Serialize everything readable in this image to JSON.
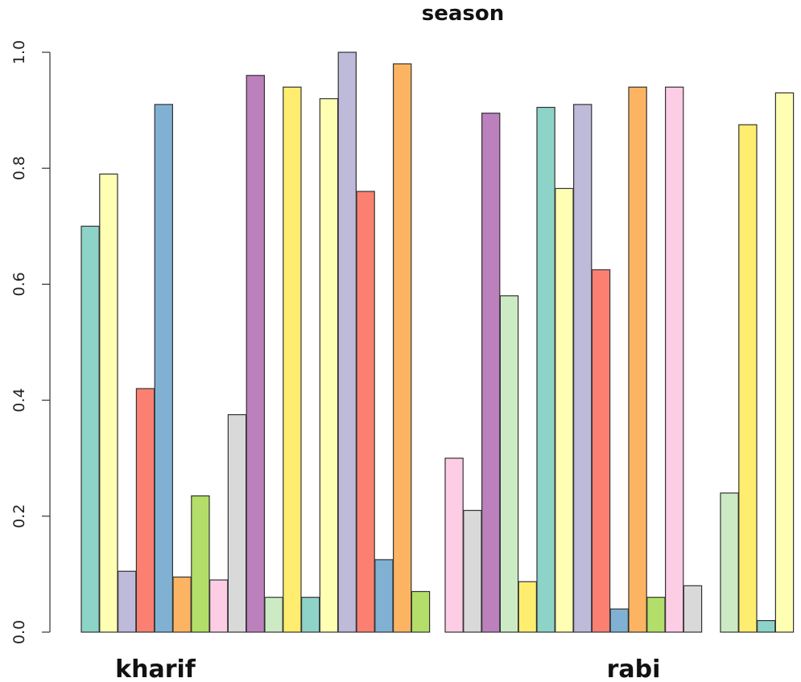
{
  "chart_data": {
    "type": "bar",
    "title": "season",
    "xlabel": "",
    "ylabel": "",
    "ylim": [
      0,
      1.0
    ],
    "yticks": [
      "0.0",
      "0.2",
      "0.4",
      "0.6",
      "0.8",
      "1.0"
    ],
    "grid": false,
    "legend": "none",
    "groups": [
      {
        "label": "kharif",
        "bars": [
          {
            "value": 0.7,
            "color": "#8DD3C7"
          },
          {
            "value": 0.79,
            "color": "#FFFFB3"
          },
          {
            "value": 0.105,
            "color": "#BEBADA"
          },
          {
            "value": 0.42,
            "color": "#FB8072"
          },
          {
            "value": 0.91,
            "color": "#80B1D3"
          },
          {
            "value": 0.095,
            "color": "#FDB462"
          },
          {
            "value": 0.235,
            "color": "#B3DE69"
          },
          {
            "value": 0.09,
            "color": "#FCCDE5"
          },
          {
            "value": 0.375,
            "color": "#D9D9D9"
          },
          {
            "value": 0.96,
            "color": "#BC80BD"
          },
          {
            "value": 0.06,
            "color": "#CCEBC5"
          },
          {
            "value": 0.94,
            "color": "#FFED6F"
          },
          {
            "value": 0.06,
            "color": "#8DD3C7"
          },
          {
            "value": 0.92,
            "color": "#FFFFB3"
          },
          {
            "value": 1.0,
            "color": "#BEBADA"
          },
          {
            "value": 0.76,
            "color": "#FB8072"
          },
          {
            "value": 0.125,
            "color": "#80B1D3"
          },
          {
            "value": 0.98,
            "color": "#FDB462"
          },
          {
            "value": 0.07,
            "color": "#B3DE69"
          }
        ]
      },
      {
        "label": "rabi",
        "bars": [
          {
            "value": 0.3,
            "color": "#FCCDE5"
          },
          {
            "value": 0.21,
            "color": "#D9D9D9"
          },
          {
            "value": 0.895,
            "color": "#BC80BD"
          },
          {
            "value": 0.58,
            "color": "#CCEBC5"
          },
          {
            "value": 0.087,
            "color": "#FFED6F"
          },
          {
            "value": 0.905,
            "color": "#8DD3C7"
          },
          {
            "value": 0.765,
            "color": "#FFFFB3"
          },
          {
            "value": 0.91,
            "color": "#BEBADA"
          },
          {
            "value": 0.625,
            "color": "#FB8072"
          },
          {
            "value": 0.04,
            "color": "#80B1D3"
          },
          {
            "value": 0.94,
            "color": "#FDB462"
          },
          {
            "value": 0.06,
            "color": "#B3DE69"
          },
          {
            "value": 0.94,
            "color": "#FCCDE5"
          },
          {
            "value": 0.08,
            "color": "#D9D9D9"
          },
          {
            "value": 0.0,
            "color": "#BC80BD"
          },
          {
            "value": 0.24,
            "color": "#CCEBC5"
          },
          {
            "value": 0.875,
            "color": "#FFED6F"
          },
          {
            "value": 0.02,
            "color": "#8DD3C7"
          },
          {
            "value": 0.93,
            "color": "#FFFFB3"
          }
        ]
      }
    ]
  }
}
